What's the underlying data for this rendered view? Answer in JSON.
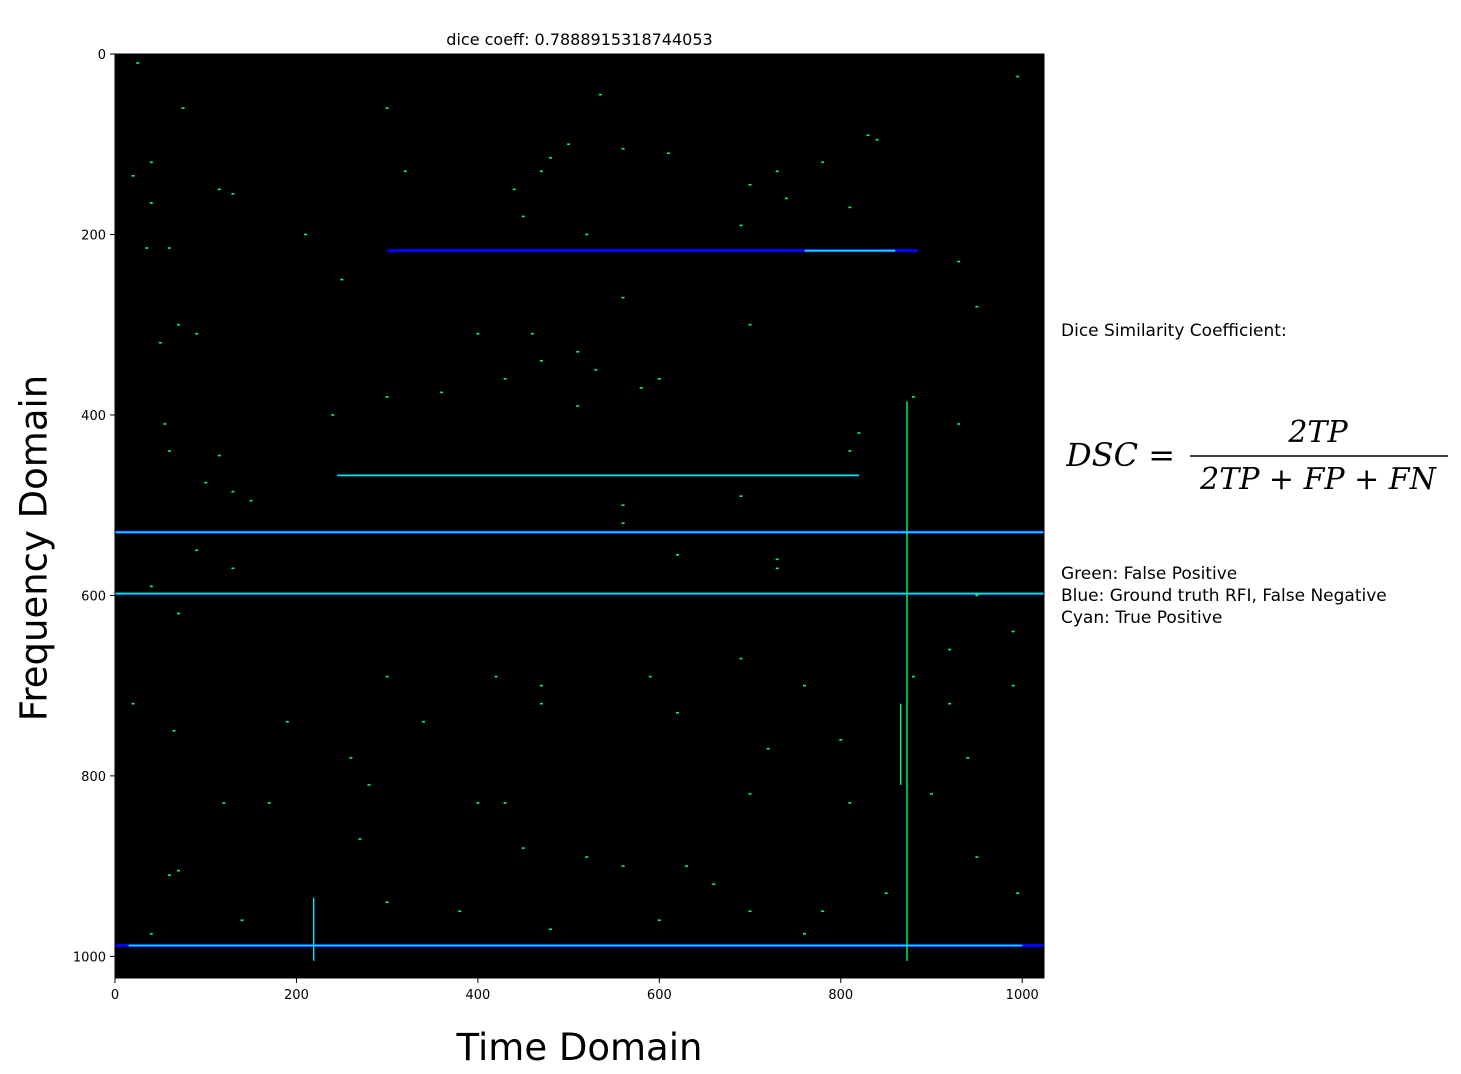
{
  "chart_data": {
    "type": "heatmap",
    "title": "dice coeff: 0.7888915318744053",
    "xlabel": "Time Domain",
    "ylabel": "Frequency Domain",
    "xlim": [
      0,
      1024
    ],
    "ylim": [
      1024,
      0
    ],
    "xticks": [
      0,
      200,
      400,
      600,
      800,
      1000
    ],
    "yticks": [
      0,
      200,
      400,
      600,
      800,
      1000
    ],
    "background": "#000000",
    "colors": {
      "false_positive": "#00ff66",
      "false_negative": "#0000ff",
      "true_positive": "#00e5ff"
    },
    "horizontal_lines": [
      {
        "y": 218,
        "x0": 300,
        "x1": 885,
        "class": "false_negative"
      },
      {
        "y": 218,
        "x0": 760,
        "x1": 860,
        "class": "true_positive"
      },
      {
        "y": 467,
        "x0": 245,
        "x1": 820,
        "class": "true_positive"
      },
      {
        "y": 530,
        "x0": 0,
        "x1": 1024,
        "class": "false_negative"
      },
      {
        "y": 530,
        "x0": 0,
        "x1": 1024,
        "class": "true_positive"
      },
      {
        "y": 598,
        "x0": 0,
        "x1": 1024,
        "class": "false_negative"
      },
      {
        "y": 598,
        "x0": 0,
        "x1": 1024,
        "class": "false_positive"
      },
      {
        "y": 988,
        "x0": 0,
        "x1": 1024,
        "class": "false_negative"
      },
      {
        "y": 988,
        "x0": 15,
        "x1": 1000,
        "class": "true_positive"
      }
    ],
    "vertical_lines": [
      {
        "x": 873,
        "y0": 385,
        "y1": 1005,
        "class": "false_positive"
      },
      {
        "x": 866,
        "y0": 720,
        "y1": 810,
        "class": "false_positive"
      },
      {
        "x": 219,
        "y0": 935,
        "y1": 1005,
        "class": "true_positive"
      }
    ],
    "points": [
      [
        25,
        10
      ],
      [
        995,
        25
      ],
      [
        535,
        45
      ],
      [
        75,
        60
      ],
      [
        300,
        60
      ],
      [
        40,
        120
      ],
      [
        20,
        135
      ],
      [
        115,
        150
      ],
      [
        130,
        155
      ],
      [
        500,
        100
      ],
      [
        560,
        105
      ],
      [
        610,
        110
      ],
      [
        480,
        115
      ],
      [
        470,
        130
      ],
      [
        320,
        130
      ],
      [
        40,
        165
      ],
      [
        440,
        150
      ],
      [
        700,
        145
      ],
      [
        730,
        130
      ],
      [
        740,
        160
      ],
      [
        840,
        95
      ],
      [
        830,
        90
      ],
      [
        780,
        120
      ],
      [
        810,
        170
      ],
      [
        690,
        190
      ],
      [
        450,
        180
      ],
      [
        520,
        200
      ],
      [
        210,
        200
      ],
      [
        60,
        215
      ],
      [
        35,
        215
      ],
      [
        250,
        250
      ],
      [
        930,
        230
      ],
      [
        560,
        270
      ],
      [
        700,
        300
      ],
      [
        950,
        280
      ],
      [
        70,
        300
      ],
      [
        90,
        310
      ],
      [
        50,
        320
      ],
      [
        400,
        310
      ],
      [
        460,
        310
      ],
      [
        510,
        330
      ],
      [
        530,
        350
      ],
      [
        580,
        370
      ],
      [
        600,
        360
      ],
      [
        430,
        360
      ],
      [
        300,
        380
      ],
      [
        360,
        375
      ],
      [
        510,
        390
      ],
      [
        470,
        340
      ],
      [
        880,
        380
      ],
      [
        240,
        400
      ],
      [
        820,
        420
      ],
      [
        930,
        410
      ],
      [
        55,
        410
      ],
      [
        60,
        440
      ],
      [
        100,
        475
      ],
      [
        115,
        445
      ],
      [
        130,
        485
      ],
      [
        150,
        495
      ],
      [
        810,
        440
      ],
      [
        560,
        500
      ],
      [
        690,
        490
      ],
      [
        560,
        520
      ],
      [
        620,
        555
      ],
      [
        730,
        560
      ],
      [
        730,
        570
      ],
      [
        90,
        550
      ],
      [
        130,
        570
      ],
      [
        40,
        590
      ],
      [
        70,
        620
      ],
      [
        950,
        600
      ],
      [
        990,
        640
      ],
      [
        590,
        690
      ],
      [
        420,
        690
      ],
      [
        470,
        700
      ],
      [
        300,
        690
      ],
      [
        920,
        660
      ],
      [
        690,
        670
      ],
      [
        760,
        700
      ],
      [
        880,
        690
      ],
      [
        20,
        720
      ],
      [
        65,
        750
      ],
      [
        190,
        740
      ],
      [
        340,
        740
      ],
      [
        470,
        720
      ],
      [
        620,
        730
      ],
      [
        720,
        770
      ],
      [
        800,
        760
      ],
      [
        920,
        720
      ],
      [
        990,
        700
      ],
      [
        260,
        780
      ],
      [
        120,
        830
      ],
      [
        170,
        830
      ],
      [
        280,
        810
      ],
      [
        400,
        830
      ],
      [
        430,
        830
      ],
      [
        700,
        820
      ],
      [
        810,
        830
      ],
      [
        900,
        820
      ],
      [
        940,
        780
      ],
      [
        60,
        910
      ],
      [
        70,
        905
      ],
      [
        270,
        870
      ],
      [
        450,
        880
      ],
      [
        520,
        890
      ],
      [
        560,
        900
      ],
      [
        630,
        900
      ],
      [
        660,
        920
      ],
      [
        700,
        950
      ],
      [
        780,
        950
      ],
      [
        850,
        930
      ],
      [
        950,
        890
      ],
      [
        995,
        930
      ],
      [
        140,
        960
      ],
      [
        300,
        940
      ],
      [
        380,
        950
      ],
      [
        480,
        970
      ],
      [
        600,
        960
      ],
      [
        760,
        975
      ],
      [
        40,
        975
      ]
    ]
  },
  "side_panel": {
    "heading": "Dice Similarity Coefficient:",
    "formula": {
      "lhs": "DSC =",
      "numerator": "2TP",
      "denominator": "2TP + FP + FN"
    },
    "legend": [
      "Green: False Positive",
      "Blue: Ground truth RFI, False Negative",
      "Cyan: True Positive"
    ]
  }
}
